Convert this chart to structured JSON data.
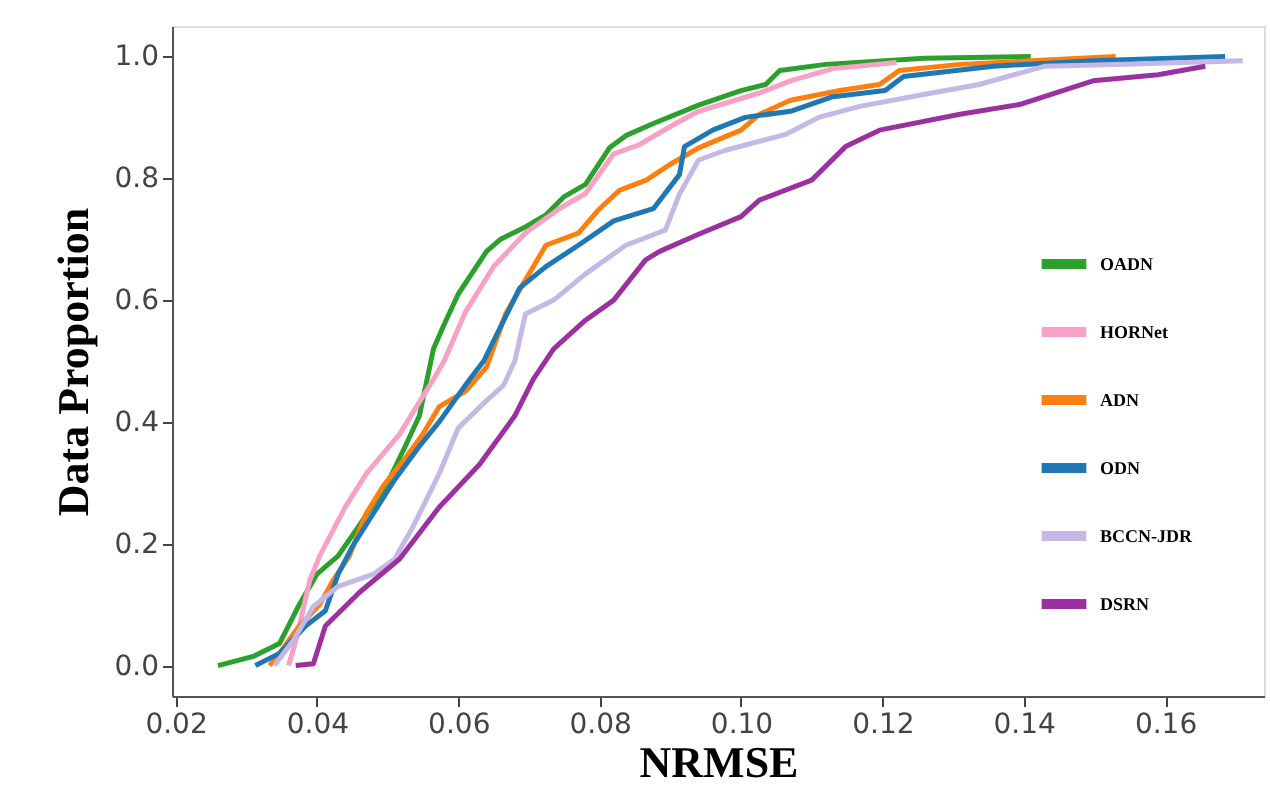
{
  "chart_data": {
    "type": "line",
    "xlabel": "NRMSE",
    "ylabel": "Data Proportion",
    "xlim": [
      0.0195,
      0.174
    ],
    "ylim": [
      -0.05,
      1.05
    ],
    "xticks": [
      {
        "value": 0.02,
        "label": "0.02"
      },
      {
        "value": 0.04,
        "label": "0.04"
      },
      {
        "value": 0.06,
        "label": "0.06"
      },
      {
        "value": 0.08,
        "label": "0.08"
      },
      {
        "value": 0.1,
        "label": "0.10"
      },
      {
        "value": 0.12,
        "label": "0.12"
      },
      {
        "value": 0.14,
        "label": "0.14"
      },
      {
        "value": 0.16,
        "label": "0.16"
      }
    ],
    "yticks": [
      {
        "value": 0,
        "label": "0.0"
      },
      {
        "value": 0.2,
        "label": "0.2"
      },
      {
        "value": 0.4,
        "label": "0.4"
      },
      {
        "value": 0.6,
        "label": "0.6"
      },
      {
        "value": 0.8,
        "label": "0.8"
      },
      {
        "value": 1,
        "label": "1.0"
      }
    ],
    "grid": false,
    "legend": "bottom right",
    "marker": "none",
    "line_style": "solid",
    "series": [
      {
        "name": "OADN",
        "color": "#2ca02c",
        "x": [
          0.026,
          0.031,
          0.0347,
          0.0375,
          0.04,
          0.043,
          0.046,
          0.05,
          0.0525,
          0.0545,
          0.0565,
          0.058,
          0.06,
          0.064,
          0.066,
          0.0695,
          0.0724,
          0.075,
          0.078,
          0.0814,
          0.0837,
          0.0876,
          0.094,
          0.1,
          0.1035,
          0.1055,
          0.112,
          0.126,
          0.141
        ],
        "values": [
          0,
          0.015,
          0.036,
          0.1,
          0.15,
          0.18,
          0.23,
          0.3,
          0.36,
          0.41,
          0.52,
          0.56,
          0.61,
          0.68,
          0.7,
          0.72,
          0.74,
          0.77,
          0.79,
          0.85,
          0.87,
          0.89,
          0.92,
          0.944,
          0.954,
          0.977,
          0.987,
          0.997,
          1.0
        ]
      },
      {
        "name": "HORNet",
        "color": "#f7a1c4",
        "x": [
          0.036,
          0.037,
          0.039,
          0.0404,
          0.044,
          0.047,
          0.0517,
          0.0565,
          0.058,
          0.061,
          0.065,
          0.0695,
          0.0743,
          0.078,
          0.082,
          0.0856,
          0.09,
          0.094,
          0.1026,
          0.107,
          0.113,
          0.122
        ],
        "values": [
          0,
          0.04,
          0.14,
          0.18,
          0.26,
          0.315,
          0.38,
          0.47,
          0.5,
          0.58,
          0.655,
          0.71,
          0.75,
          0.775,
          0.84,
          0.855,
          0.885,
          0.91,
          0.94,
          0.96,
          0.98,
          0.99
        ]
      },
      {
        "name": "ADN",
        "color": "#ff7f0e",
        "x": [
          0.0333,
          0.0347,
          0.0375,
          0.0404,
          0.0423,
          0.0446,
          0.047,
          0.0494,
          0.0525,
          0.055,
          0.0573,
          0.061,
          0.064,
          0.0667,
          0.0695,
          0.0724,
          0.077,
          0.08,
          0.0828,
          0.0866,
          0.09,
          0.094,
          0.1,
          0.1026,
          0.107,
          0.114,
          0.1196,
          0.1224,
          0.131,
          0.153
        ],
        "values": [
          0,
          0.02,
          0.065,
          0.1,
          0.14,
          0.18,
          0.25,
          0.295,
          0.34,
          0.38,
          0.425,
          0.45,
          0.49,
          0.577,
          0.633,
          0.69,
          0.71,
          0.75,
          0.78,
          0.797,
          0.823,
          0.85,
          0.879,
          0.905,
          0.928,
          0.944,
          0.954,
          0.977,
          0.987,
          1.0
        ]
      },
      {
        "name": "ODN",
        "color": "#1f77b4",
        "x": [
          0.0313,
          0.0347,
          0.0384,
          0.0412,
          0.043,
          0.045,
          0.048,
          0.051,
          0.0545,
          0.0573,
          0.061,
          0.0636,
          0.0687,
          0.0724,
          0.077,
          0.082,
          0.0876,
          0.0913,
          0.092,
          0.096,
          0.1006,
          0.107,
          0.113,
          0.1204,
          0.123,
          0.1357,
          0.1498,
          0.1685
        ],
        "values": [
          0,
          0.02,
          0.065,
          0.09,
          0.15,
          0.195,
          0.25,
          0.305,
          0.36,
          0.4,
          0.46,
          0.5,
          0.62,
          0.655,
          0.69,
          0.73,
          0.75,
          0.806,
          0.852,
          0.879,
          0.9,
          0.91,
          0.934,
          0.944,
          0.967,
          0.984,
          0.993,
          1.0
        ]
      },
      {
        "name": "BCCN-JDR",
        "color": "#c5b8e6",
        "x": [
          0.034,
          0.0367,
          0.0395,
          0.043,
          0.048,
          0.051,
          0.0537,
          0.0573,
          0.06,
          0.064,
          0.0664,
          0.068,
          0.0695,
          0.0735,
          0.078,
          0.0837,
          0.0893,
          0.0913,
          0.094,
          0.0978,
          0.1063,
          0.111,
          0.1168,
          0.126,
          0.1337,
          0.143,
          0.1544,
          0.171
        ],
        "values": [
          0,
          0.042,
          0.097,
          0.13,
          0.15,
          0.175,
          0.23,
          0.315,
          0.39,
          0.435,
          0.46,
          0.5,
          0.577,
          0.6,
          0.643,
          0.69,
          0.715,
          0.774,
          0.83,
          0.846,
          0.872,
          0.9,
          0.918,
          0.938,
          0.954,
          0.984,
          0.987,
          0.993
        ]
      },
      {
        "name": "DSRN",
        "color": "#9b30a0",
        "x": [
          0.037,
          0.0395,
          0.0412,
          0.046,
          0.0517,
          0.0573,
          0.063,
          0.068,
          0.0706,
          0.0735,
          0.078,
          0.082,
          0.0865,
          0.0885,
          0.094,
          0.1,
          0.1026,
          0.11,
          0.1148,
          0.1196,
          0.131,
          0.1394,
          0.1498,
          0.159,
          0.1657
        ],
        "values": [
          0,
          0.003,
          0.065,
          0.12,
          0.175,
          0.26,
          0.33,
          0.41,
          0.47,
          0.52,
          0.567,
          0.6,
          0.666,
          0.68,
          0.708,
          0.737,
          0.764,
          0.797,
          0.852,
          0.879,
          0.905,
          0.921,
          0.96,
          0.97,
          0.984
        ]
      }
    ]
  }
}
